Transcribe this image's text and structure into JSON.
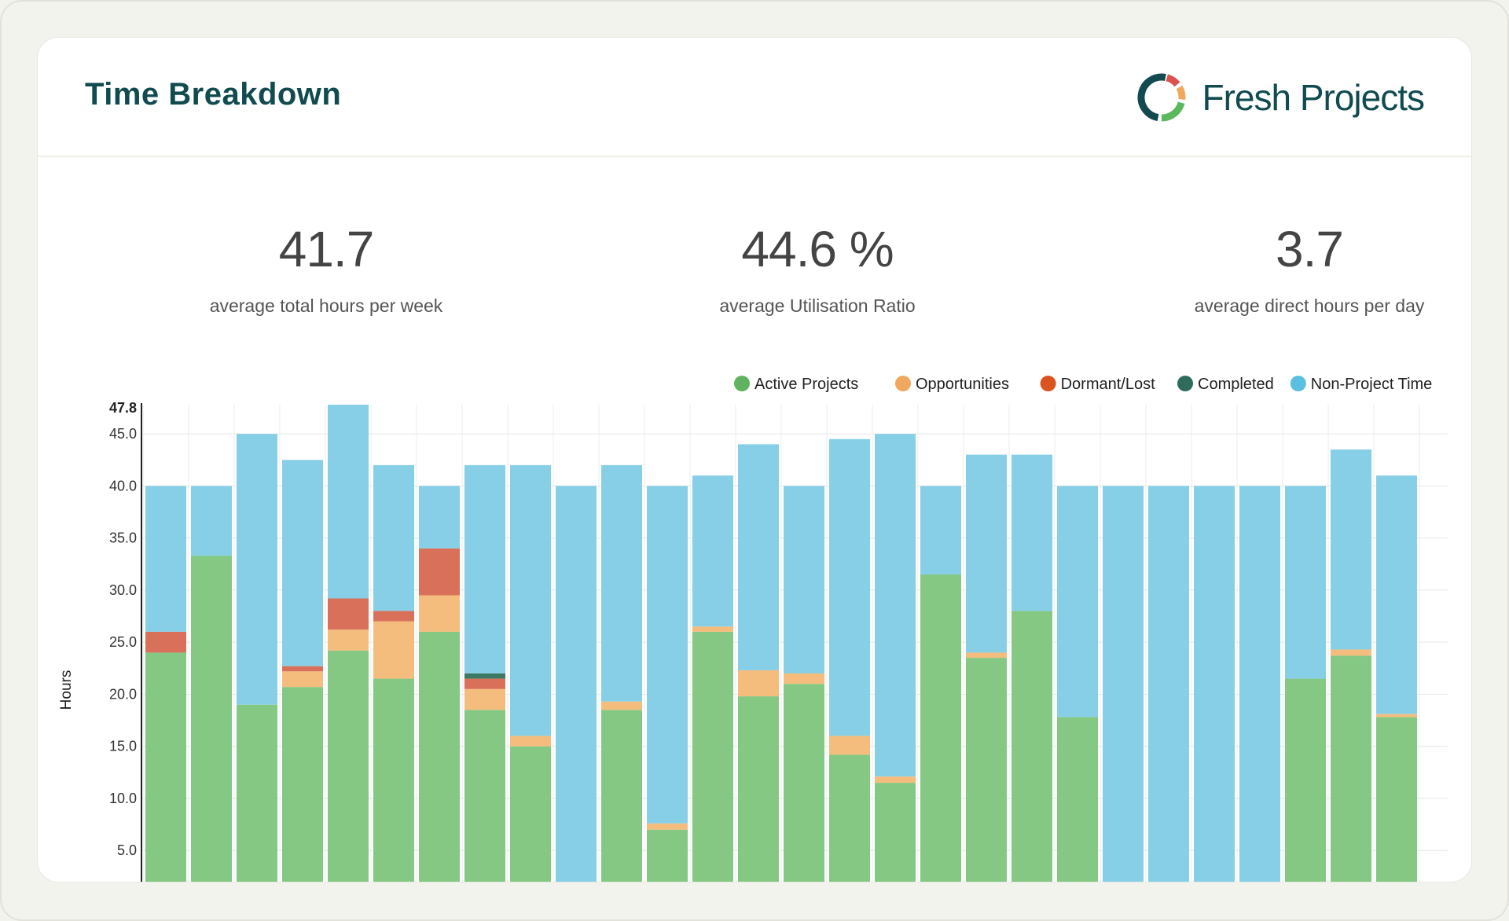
{
  "header": {
    "title": "Time Breakdown",
    "logo_text": "Fresh Projects"
  },
  "kpis": [
    {
      "value": "41.7",
      "label": "average total hours per week"
    },
    {
      "value": "44.6 %",
      "label": "average Utilisation Ratio"
    },
    {
      "value": "3.7",
      "label": "average direct hours per day"
    }
  ],
  "colors": {
    "title": "#114b4f",
    "logo_ring": [
      "#114b4f",
      "#d9534f",
      "#f0a85e",
      "#5cb85c"
    ]
  },
  "chart_data": {
    "type": "bar",
    "stacked": true,
    "ylabel": "Hours",
    "ylim": [
      2.0,
      47.8
    ],
    "yticks": [
      "5.0",
      "10.0",
      "15.0",
      "20.0",
      "25.0",
      "30.0",
      "35.0",
      "40.0",
      "45.0"
    ],
    "ymax_label": "47.8",
    "grid": true,
    "legend_position": "top-right",
    "series": [
      {
        "name": "Active Projects",
        "color": "#85c883",
        "values": [
          24,
          33.3,
          19,
          20.7,
          24.2,
          21.5,
          26,
          18.5,
          15,
          0,
          18.5,
          7,
          26,
          19.8,
          21,
          14.2,
          11.5,
          31.5,
          23.5,
          28,
          17.8,
          0,
          0,
          0,
          0,
          21.5,
          23.7,
          17.8
        ]
      },
      {
        "name": "Opportunities",
        "color": "#f5bd7d",
        "values": [
          0,
          0,
          0,
          1.5,
          2,
          5.5,
          3.5,
          2,
          1,
          0,
          0.8,
          0.6,
          0.5,
          2.5,
          1,
          1.8,
          0.6,
          0,
          0.5,
          0,
          0,
          0,
          0,
          0,
          0,
          0,
          0.6,
          0.3
        ]
      },
      {
        "name": "Dormant/Lost",
        "color": "#d9715a",
        "values": [
          2,
          0,
          0,
          0.5,
          3,
          1,
          4.5,
          1,
          0,
          0,
          0,
          0,
          0,
          0,
          0,
          0,
          0,
          0,
          0,
          0,
          0,
          0,
          0,
          0,
          0,
          0,
          0,
          0
        ]
      },
      {
        "name": "Completed",
        "color": "#3d7a66",
        "values": [
          0,
          0,
          0,
          0,
          0,
          0,
          0,
          0.5,
          0,
          0,
          0,
          0,
          0,
          0,
          0,
          0,
          0,
          0,
          0,
          0,
          0,
          0,
          0,
          0,
          0,
          0,
          0,
          0
        ]
      },
      {
        "name": "Non-Project Time",
        "color": "#87cfe6",
        "values": [
          14,
          6.7,
          26,
          19.8,
          18.6,
          14,
          6,
          20,
          26,
          40,
          22.7,
          32.4,
          14.5,
          21.7,
          18,
          28.5,
          32.9,
          8.5,
          19,
          15,
          22.2,
          40,
          40,
          40,
          40,
          18.5,
          19.2,
          22.9
        ]
      }
    ],
    "legend_colors": [
      "#5fb360",
      "#f0a85e",
      "#d9541f",
      "#2f6b5a",
      "#5bbfdf"
    ]
  }
}
